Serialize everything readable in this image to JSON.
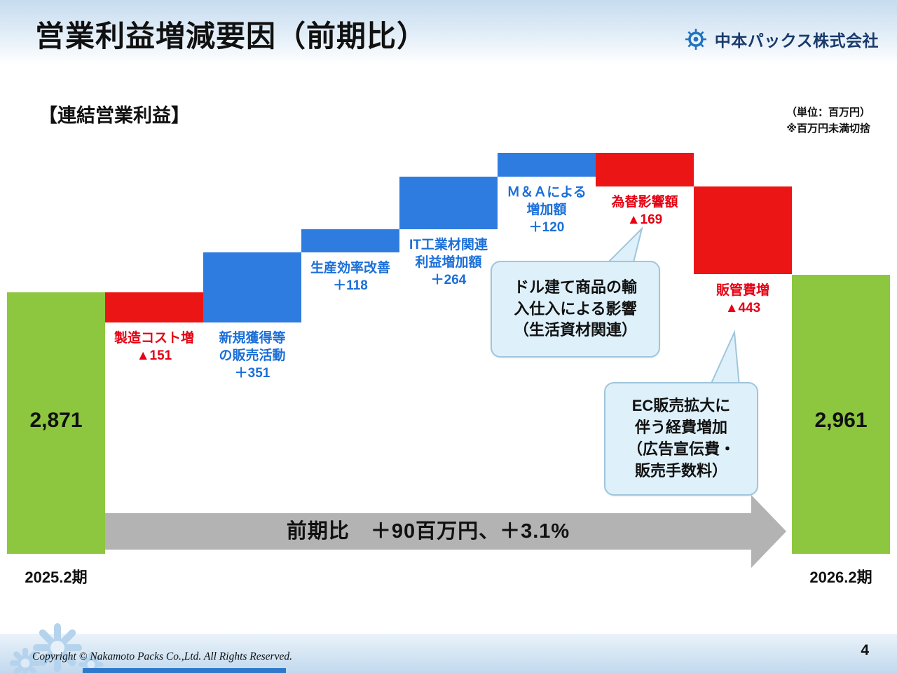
{
  "header": {
    "title": "営業利益増減要因（前期比）",
    "company": "中本パックス株式会社"
  },
  "notes": {
    "unit": "（単位：百万円）",
    "rounding": "※百万円未満切捨"
  },
  "chart_data": {
    "type": "waterfall",
    "section_title": "【連結営業利益】",
    "unit": "百万円",
    "start_label": "2025.2期",
    "end_label": "2026.2期",
    "start_value": 2871,
    "end_value": 2961,
    "bars": [
      {
        "kind": "total",
        "axis_label": "2025.2期",
        "value": 2871,
        "value_display": "2,871"
      },
      {
        "kind": "decrease",
        "value": -151,
        "label": "製造コスト増\n▲151"
      },
      {
        "kind": "increase",
        "value": 351,
        "label": "新規獲得等\nの販売活動\n＋351"
      },
      {
        "kind": "increase",
        "value": 118,
        "label": "生産効率改善\n＋118"
      },
      {
        "kind": "increase",
        "value": 264,
        "label": "IT工業材関連\n利益増加額\n＋264"
      },
      {
        "kind": "increase",
        "value": 120,
        "label": "Ｍ＆Ａによる\n増加額\n＋120"
      },
      {
        "kind": "decrease",
        "value": -169,
        "label": "為替影響額\n▲169"
      },
      {
        "kind": "decrease",
        "value": -443,
        "label": "販管費増\n▲443"
      },
      {
        "kind": "total",
        "axis_label": "2026.2期",
        "value": 2961,
        "value_display": "2,961"
      }
    ],
    "summary_arrow": "前期比　＋90百万円、＋3.1%",
    "callouts": [
      "ドル建て商品の輸\n入仕入による影響\n（生活資材関連）",
      "EC販売拡大に\n伴う経費増加\n（広告宣伝費・\n販売手数料）"
    ],
    "colors": {
      "total": "#8dc63f",
      "increase": "#2e7ce0",
      "decrease": "#ec1515",
      "increase_text": "#1b6fd8",
      "decrease_text": "#e60012"
    }
  },
  "footer": {
    "copyright": "Copyright © Nakamoto Packs Co.,Ltd. All Rights Reserved.",
    "page": "4"
  }
}
